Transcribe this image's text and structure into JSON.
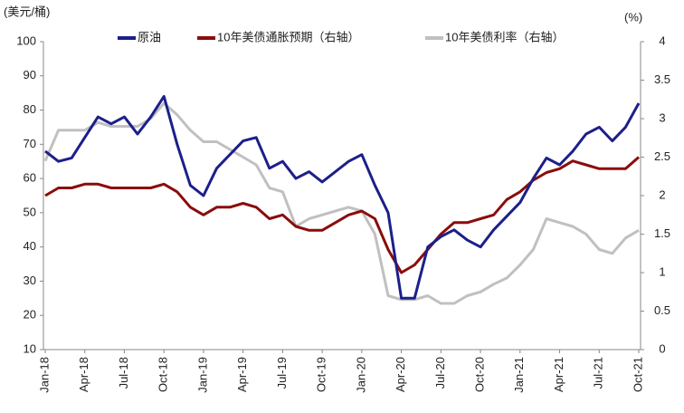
{
  "chart_data": {
    "type": "line",
    "ylabel": "(美元/桶)",
    "y2label": "(%)",
    "categories": [
      "Jan-18",
      null,
      null,
      "Apr-18",
      null,
      null,
      "Jul-18",
      null,
      null,
      "Oct-18",
      null,
      null,
      "Jan-19",
      null,
      null,
      "Apr-19",
      null,
      null,
      "Jul-19",
      null,
      null,
      "Oct-19",
      null,
      null,
      "Jan-20",
      null,
      null,
      "Apr-20",
      null,
      null,
      "Jul-20",
      null,
      null,
      "Oct-20",
      null,
      null,
      "Jan-21",
      null,
      null,
      "Apr-21",
      null,
      null,
      "Jul-21",
      null,
      null,
      "Oct-21"
    ],
    "ylim": [
      10,
      100
    ],
    "yticks": [
      10,
      20,
      30,
      40,
      50,
      60,
      70,
      80,
      90,
      100
    ],
    "y2lim": [
      0,
      4
    ],
    "y2ticks": [
      0,
      0.5,
      1,
      1.5,
      2,
      2.5,
      3,
      3.5,
      4
    ],
    "legend": "top",
    "series": [
      {
        "name": "原油",
        "color": "#1c1f8a",
        "values": [
          68,
          65,
          66,
          72,
          78,
          76,
          78,
          73,
          78,
          84,
          70,
          58,
          55,
          63,
          67,
          71,
          72,
          63,
          65,
          60,
          62,
          59,
          62,
          65,
          67,
          58,
          50,
          25,
          25,
          40,
          43,
          45,
          42,
          40,
          45,
          49,
          53,
          60,
          66,
          64,
          68,
          73,
          75,
          71,
          75,
          82
        ]
      },
      {
        "name": "10年美债通胀预期（右轴）",
        "color": "#8b0c0c",
        "axis": "y2",
        "values": [
          2.0,
          2.1,
          2.1,
          2.15,
          2.15,
          2.1,
          2.1,
          2.1,
          2.1,
          2.15,
          2.05,
          1.85,
          1.75,
          1.85,
          1.85,
          1.9,
          1.85,
          1.7,
          1.75,
          1.6,
          1.55,
          1.55,
          1.65,
          1.75,
          1.8,
          1.7,
          1.3,
          1.0,
          1.1,
          1.3,
          1.5,
          1.65,
          1.65,
          1.7,
          1.75,
          1.95,
          2.05,
          2.2,
          2.3,
          2.35,
          2.45,
          2.4,
          2.35,
          2.35,
          2.35,
          2.5
        ]
      },
      {
        "name": "10年美债利率（右轴）",
        "color": "#c0c0c0",
        "axis": "y2",
        "values": [
          2.45,
          2.85,
          2.85,
          2.85,
          2.95,
          2.9,
          2.9,
          2.9,
          3.0,
          3.2,
          3.05,
          2.85,
          2.7,
          2.7,
          2.6,
          2.5,
          2.4,
          2.1,
          2.05,
          1.6,
          1.7,
          1.75,
          1.8,
          1.85,
          1.8,
          1.5,
          0.7,
          0.65,
          0.65,
          0.7,
          0.6,
          0.6,
          0.7,
          0.75,
          0.85,
          0.93,
          1.1,
          1.3,
          1.7,
          1.65,
          1.6,
          1.5,
          1.3,
          1.25,
          1.45,
          1.55
        ]
      }
    ]
  }
}
